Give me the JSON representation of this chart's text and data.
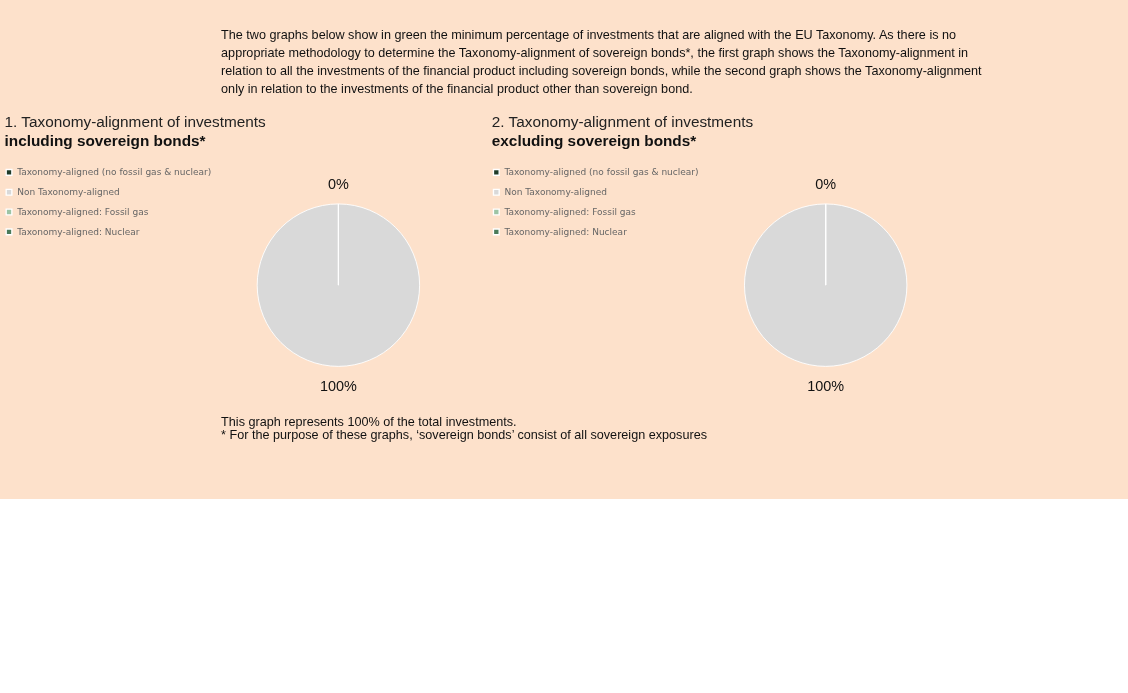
{
  "chart_data": [
    {
      "type": "pie",
      "title": "1.  Taxonomy-alignment of investments",
      "subtitle": "including sovereign bonds*",
      "categories": [
        "Taxonomy-aligned (no fossil gas & nuclear)",
        "Non Taxonomy-aligned",
        "Taxonomy-aligned: Fossil gas",
        "Taxonomy-aligned: Nuclear"
      ],
      "values": [
        0,
        100,
        0,
        0
      ],
      "colors": [
        "#1f3b29",
        "#d9d9d9",
        "#9dc4a5",
        "#4b7b5a"
      ],
      "value_labels": [
        "0%",
        "100%",
        null,
        null
      ],
      "legend": "left",
      "annotations": [
        "The two graphs below show in green the minimum percentage of investments that are aligned with the EU Taxonomy. As there is no appropriate methodology to determine the Taxonomy-alignment of sovereign bonds*, the first graph shows the Taxonomy-alignment in relation to all the investments of the financial product including sovereign bonds, while the second graph shows the Taxonomy-alignment only in relation to the investments of the financial product other than sovereign bond."
      ]
    },
    {
      "type": "pie",
      "title": "2.  Taxonomy-alignment of investments",
      "subtitle": "excluding sovereign bonds*",
      "categories": [
        "Taxonomy-aligned (no fossil gas & nuclear)",
        "Non Taxonomy-aligned",
        "Taxonomy-aligned: Fossil gas",
        "Taxonomy-aligned: Nuclear"
      ],
      "values": [
        0,
        100,
        0,
        0
      ],
      "colors": [
        "#1f3b29",
        "#d9d9d9",
        "#9dc4a5",
        "#4b7b5a"
      ],
      "value_labels": [
        "0%",
        "100%",
        null,
        null
      ],
      "legend": "left",
      "annotations": [
        "This graph represents 100% of the total investments.",
        "*  For the purpose of these graphs, ‘sovereign bonds’ consist of  all sovereign exposures"
      ]
    }
  ]
}
